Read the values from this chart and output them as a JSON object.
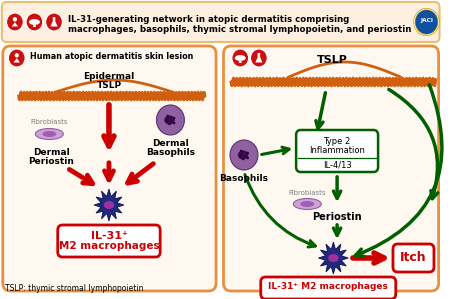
{
  "title_line1": "IL-31-generating network in atopic dermatitis comprising",
  "title_line2": "macrophages, basophils, thymic stromal lymphopoietin, and periostin",
  "footer": "TSLP: thymic stromal lymphopoietin",
  "left_panel_title": "Human atopic dermatitis skin lesion",
  "header_bg": "#fdf0e0",
  "header_border": "#e8c070",
  "panel_bg": "#fff8f0",
  "panel_border": "#e89040",
  "red_color": "#cc0000",
  "dark_green": "#006000",
  "orange_color": "#d06010",
  "icon_red": "#cc1010",
  "jaci_blue": "#1050a0",
  "jaci_gold": "#c8a010",
  "macrophage_blue": "#202880",
  "basophil_purple": "#8050a0",
  "fibroblast_pink": "#c080c0",
  "gray_text": "#808080"
}
